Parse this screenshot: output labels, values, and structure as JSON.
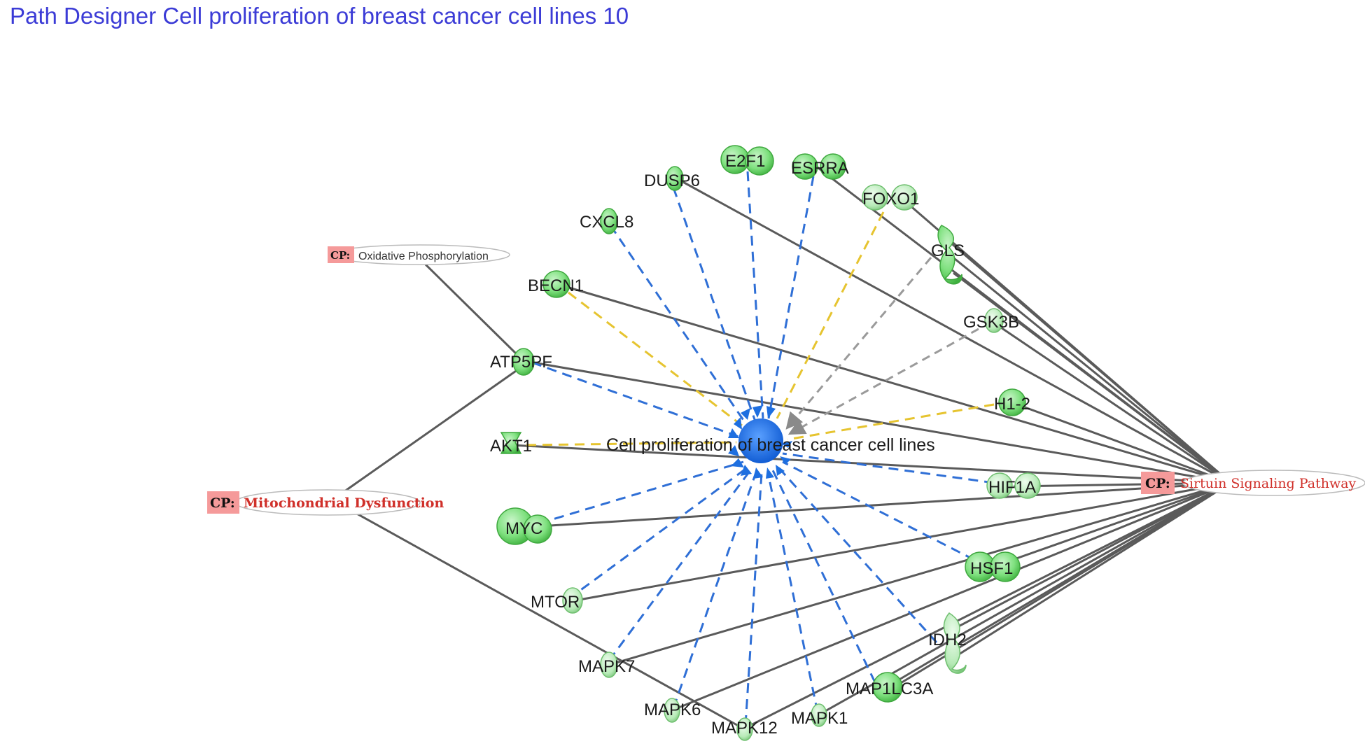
{
  "title": "Path Designer Cell proliferation of breast cancer cell lines 10",
  "center": {
    "label": "Cell proliferation of breast cancer cell lines"
  },
  "genes": [
    {
      "id": "DUSP6",
      "label": "DUSP6"
    },
    {
      "id": "E2F1",
      "label": "E2F1"
    },
    {
      "id": "ESRRA",
      "label": "ESRRA"
    },
    {
      "id": "FOXO1",
      "label": "FOXO1"
    },
    {
      "id": "CXCL8",
      "label": "CXCL8"
    },
    {
      "id": "GLS",
      "label": "GLS"
    },
    {
      "id": "BECN1",
      "label": "BECN1"
    },
    {
      "id": "GSK3B",
      "label": "GSK3B"
    },
    {
      "id": "ATP5PF",
      "label": "ATP5PF"
    },
    {
      "id": "H1-2",
      "label": "H1-2"
    },
    {
      "id": "AKT1",
      "label": "AKT1"
    },
    {
      "id": "HIF1A",
      "label": "HIF1A"
    },
    {
      "id": "MYC",
      "label": "MYC"
    },
    {
      "id": "HSF1",
      "label": "HSF1"
    },
    {
      "id": "MTOR",
      "label": "MTOR"
    },
    {
      "id": "IDH2",
      "label": "IDH2"
    },
    {
      "id": "MAPK7",
      "label": "MAPK7"
    },
    {
      "id": "MAP1LC3A",
      "label": "MAP1LC3A"
    },
    {
      "id": "MAPK6",
      "label": "MAPK6"
    },
    {
      "id": "MAPK12",
      "label": "MAPK12"
    },
    {
      "id": "MAPK1",
      "label": "MAPK1"
    }
  ],
  "pathways": {
    "oxphos": {
      "tag": "CP:",
      "label": "Oxidative Phosphorylation"
    },
    "mito": {
      "tag": "CP:",
      "label": "Mitochondrial Dysfunction"
    },
    "sirtuin": {
      "tag": "CP:",
      "label": "Sirtuin Signaling Pathway"
    }
  },
  "colors": {
    "gene_fill": "#7ee07e",
    "gene_stroke": "#3fa83f",
    "center_fill": "#1e6fe0",
    "edge_solid": "#5a5a5a",
    "edge_blue": "#2f6fd6",
    "edge_yellow": "#e6c430",
    "edge_gray": "#9a9a9a",
    "cp_tag_fill": "#f59a9a"
  }
}
